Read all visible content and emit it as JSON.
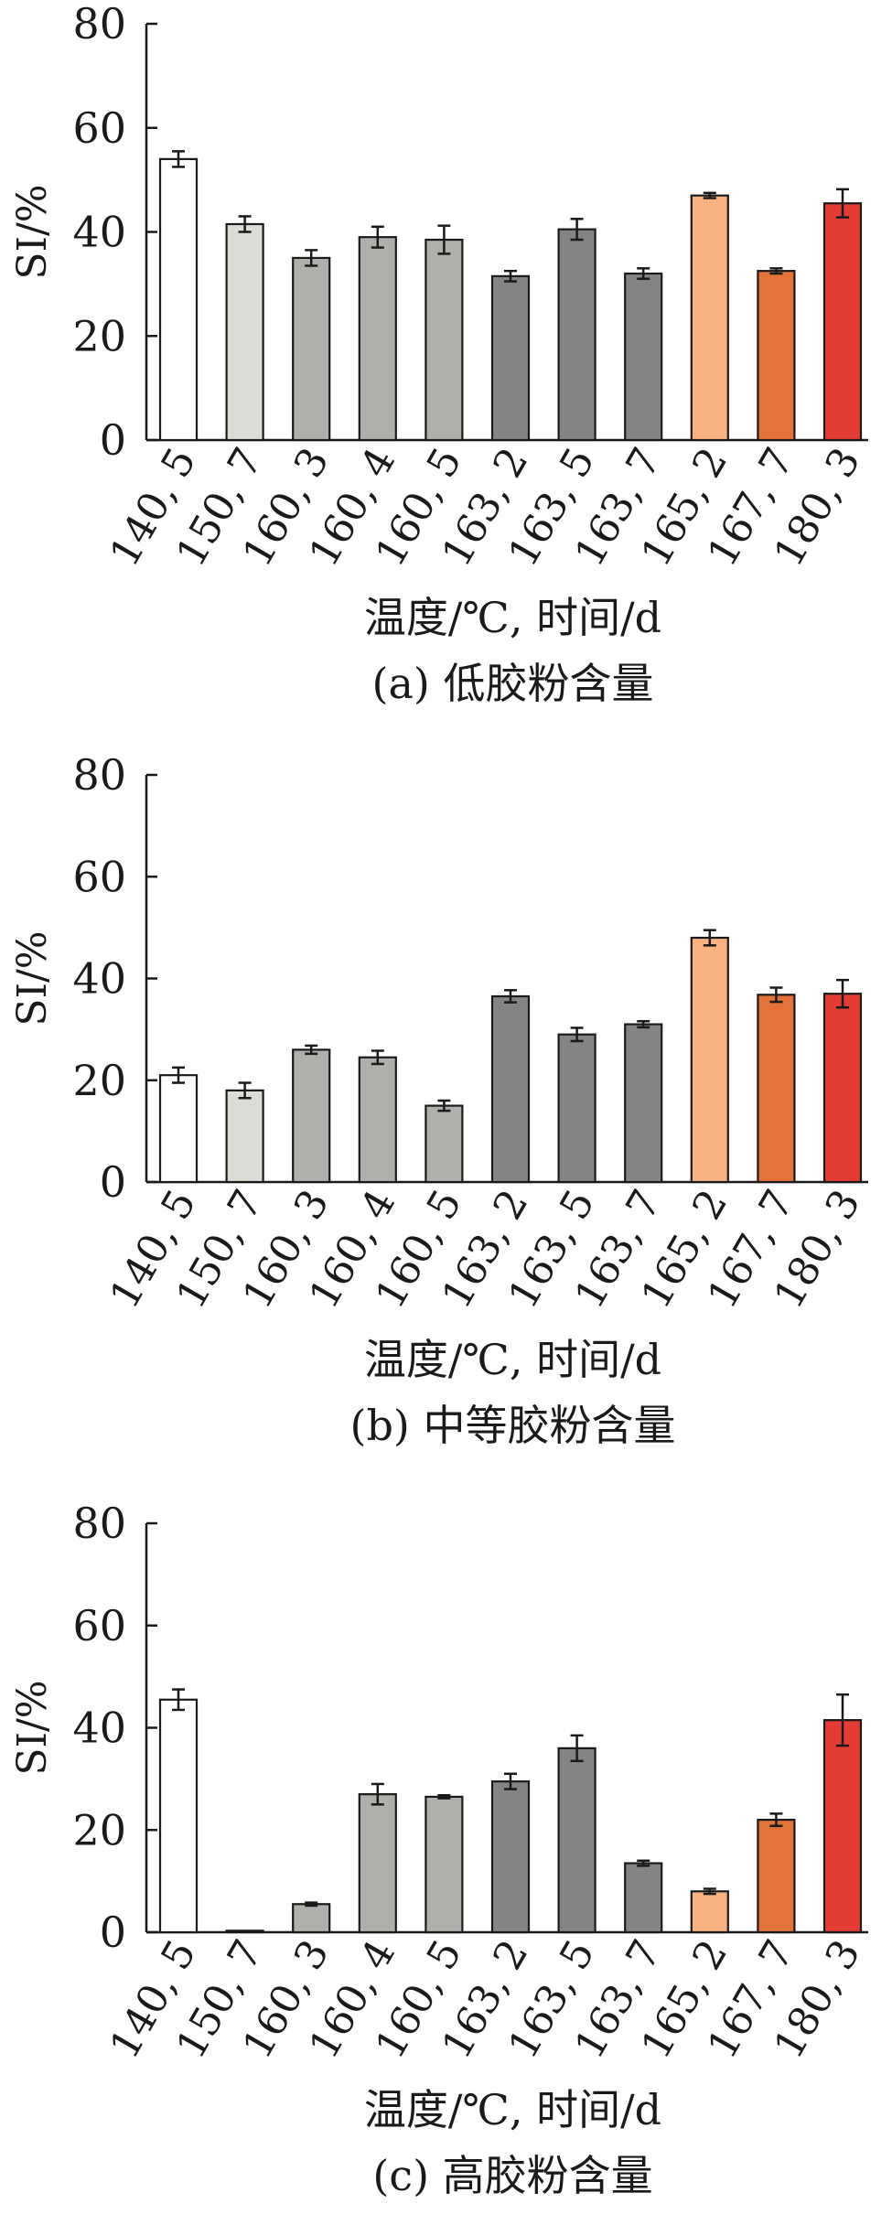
{
  "chart_data": [
    {
      "type": "bar",
      "caption": "(a) 低胶粉含量",
      "xlabel": "温度/℃, 时间/d",
      "ylabel": "SI/%",
      "ylim": [
        0,
        80
      ],
      "yticks": [
        "0",
        "20",
        "40",
        "60",
        "80"
      ],
      "grid": false,
      "categories": [
        "140, 5",
        "150, 7",
        "160, 3",
        "160, 4",
        "160, 5",
        "163, 2",
        "163, 5",
        "163, 7",
        "165, 2",
        "167, 7",
        "180, 3"
      ],
      "values": [
        54.0,
        41.5,
        35.0,
        39.0,
        38.5,
        31.5,
        40.5,
        32.0,
        47.0,
        32.5,
        45.5
      ],
      "errors": [
        1.5,
        1.5,
        1.5,
        2.0,
        2.7,
        1.0,
        2.0,
        1.0,
        0.5,
        0.5,
        2.7
      ]
    },
    {
      "type": "bar",
      "caption": "(b) 中等胶粉含量",
      "xlabel": "温度/℃, 时间/d",
      "ylabel": "SI/%",
      "ylim": [
        0,
        80
      ],
      "yticks": [
        "0",
        "20",
        "40",
        "60",
        "80"
      ],
      "grid": false,
      "categories": [
        "140, 5",
        "150, 7",
        "160, 3",
        "160, 4",
        "160, 5",
        "163, 2",
        "163, 5",
        "163, 7",
        "165, 2",
        "167, 7",
        "180, 3"
      ],
      "values": [
        21.0,
        18.0,
        26.0,
        24.5,
        15.0,
        36.5,
        29.0,
        31.0,
        48.0,
        36.8,
        37.0
      ],
      "errors": [
        1.5,
        1.5,
        0.8,
        1.3,
        1.0,
        1.2,
        1.3,
        0.6,
        1.5,
        1.4,
        2.7
      ]
    },
    {
      "type": "bar",
      "caption": "(c) 高胶粉含量",
      "xlabel": "温度/℃, 时间/d",
      "ylabel": "SI/%",
      "ylim": [
        0,
        80
      ],
      "yticks": [
        "0",
        "20",
        "40",
        "60",
        "80"
      ],
      "grid": false,
      "categories": [
        "140, 5",
        "150, 7",
        "160, 3",
        "160, 4",
        "160, 5",
        "163, 2",
        "163, 5",
        "163, 7",
        "165, 2",
        "167, 7",
        "180, 3"
      ],
      "values": [
        45.5,
        0.3,
        5.5,
        27.0,
        26.5,
        29.5,
        36.0,
        13.5,
        8.0,
        22.0,
        41.5
      ],
      "errors": [
        2.0,
        0,
        0.3,
        2.0,
        0.3,
        1.5,
        2.5,
        0.5,
        0.5,
        1.2,
        5.0
      ]
    }
  ],
  "colors": {
    "bar_fills": [
      "#ffffff",
      "#dcdcd6",
      "#b1afab",
      "#b1afab",
      "#b1afab",
      "#848484",
      "#848484",
      "#848484",
      "#f8b380",
      "#e4733a",
      "#e23c34"
    ],
    "bar_stroke": "#1a1a1a",
    "axis": "#1a1a1a",
    "error_bar": "#1a1a1a"
  }
}
